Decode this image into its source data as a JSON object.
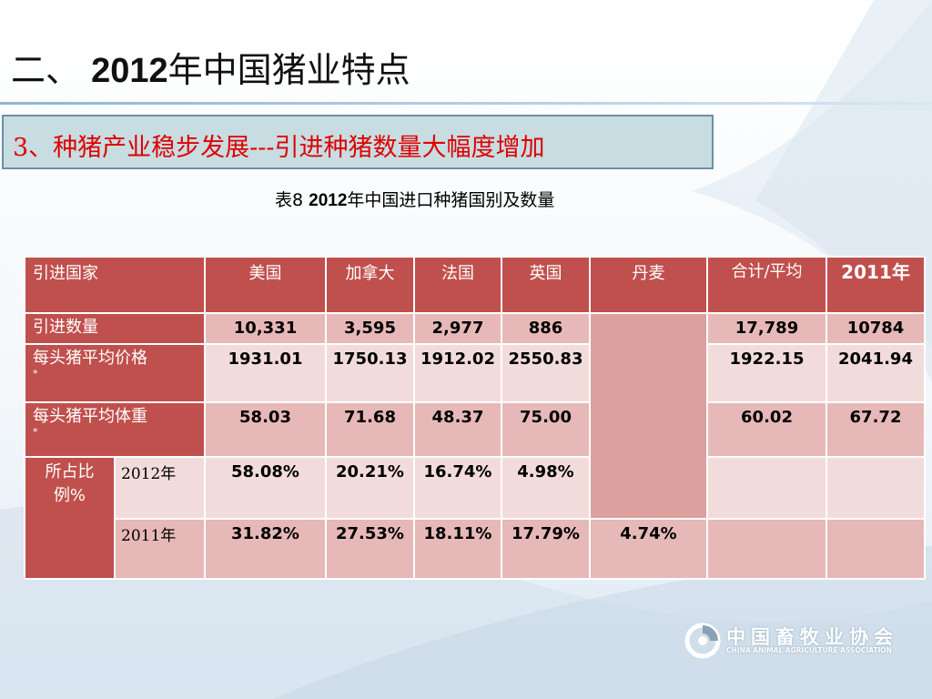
{
  "slide": {
    "title_prefix": "二、",
    "title_year": "2012",
    "title_rest": "年中国猪业特点",
    "subtitle": "3、种猪产业稳步发展---引进种猪数量大幅度增加",
    "caption_prefix": "表8",
    "caption_year": "2012",
    "caption_rest": "年中国进口种猪国别及数量"
  },
  "table": {
    "headers": {
      "country": "引进国家",
      "usa": "美国",
      "canada": "加拿大",
      "france": "法国",
      "uk": "英国",
      "denmark": "丹麦",
      "total": "合计/平均",
      "y2011": "2011年"
    },
    "rows": {
      "qty": {
        "label": "引进数量",
        "usa": "10,331",
        "canada": "3,595",
        "france": "2,977",
        "uk": "886",
        "total": "17,789",
        "y2011": "10784"
      },
      "price": {
        "label": "每头猪平均价格",
        "note": "*",
        "usa": "1931.01",
        "canada": "1750.13",
        "france": "1912.02",
        "uk": "2550.83",
        "total": "1922.15",
        "y2011": "2041.94"
      },
      "weight": {
        "label": "每头猪平均体重",
        "note": "*",
        "usa": "58.03",
        "canada": "71.68",
        "france": "48.37",
        "uk": "75.00",
        "total": "60.02",
        "y2011": "67.72"
      },
      "share": {
        "label": "所占比例%",
        "y2012": {
          "label": "2012年",
          "usa": "58.08%",
          "canada": "20.21%",
          "france": "16.74%",
          "uk": "4.98%"
        },
        "y2011": {
          "label": "2011年",
          "usa": "31.82%",
          "canada": "27.53%",
          "france": "18.11%",
          "uk": "17.79%",
          "denmark": "4.74%"
        }
      }
    }
  },
  "logo": {
    "name_cn": "中国畜牧业协会",
    "name_en": "CHINA ANIMAL AGRICULTURE ASSOCIATION",
    "icon": "association-logo-icon"
  },
  "colors": {
    "header_red": "#c0504d",
    "cell_pink": "#e6b9b8",
    "cell_light": "#f2dcdb",
    "subtitle_red": "#e00000"
  }
}
